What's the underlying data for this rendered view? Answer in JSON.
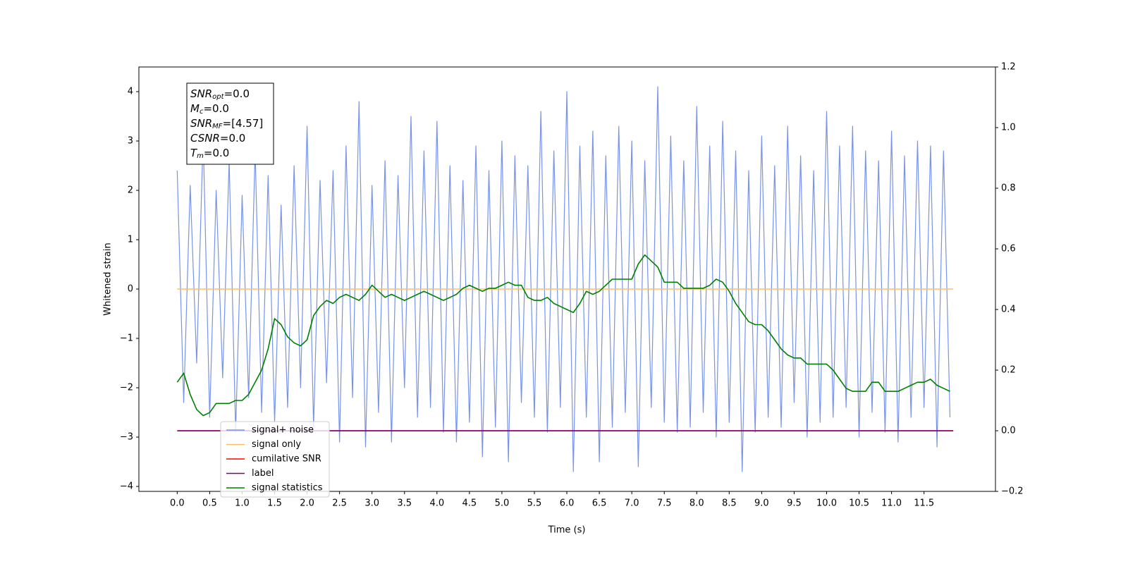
{
  "chart_data": {
    "type": "line",
    "xlabel": "Time (s)",
    "ylabel": "Whitened strain",
    "xlim": [
      -0.59,
      12.6
    ],
    "ylim": [
      -4.1,
      4.5
    ],
    "y2lim": [
      -0.2,
      1.2
    ],
    "xticks": [
      {
        "value": 0,
        "label": "0.0"
      },
      0.5,
      {
        "value": 1,
        "label": "1.0"
      },
      1.5,
      {
        "value": 2,
        "label": "2.0"
      },
      2.5,
      {
        "value": 3,
        "label": "3.0"
      },
      3.5,
      {
        "value": 4,
        "label": "4.0"
      },
      4.5,
      {
        "value": 5,
        "label": "5.0"
      },
      5.5,
      {
        "value": 6,
        "label": "6.0"
      },
      6.5,
      {
        "value": 7,
        "label": "7.0"
      },
      7.5,
      {
        "value": 8,
        "label": "8.0"
      },
      8.5,
      {
        "value": 9,
        "label": "9.0"
      },
      9.5,
      {
        "value": 10,
        "label": "10.0"
      },
      10.5,
      {
        "value": 11,
        "label": "11.0"
      },
      11.5
    ],
    "yticks": [
      {
        "value": -4,
        "label": "−4"
      },
      {
        "value": -3,
        "label": "−3"
      },
      {
        "value": -2,
        "label": "−2"
      },
      {
        "value": -1,
        "label": "−1"
      },
      0,
      1,
      2,
      3,
      4
    ],
    "y2ticks": [
      {
        "value": -0.2,
        "label": "−0.2"
      },
      {
        "value": 0,
        "label": "0.0"
      },
      0.2,
      0.4,
      0.6,
      0.8,
      {
        "value": 1,
        "label": "1.0"
      },
      1.2
    ],
    "grid": false,
    "legend_loc": "lower left",
    "annotation": [
      {
        "symbol": "SNR",
        "subscript": "opt",
        "text": "=0.0"
      },
      {
        "symbol": "M",
        "subscript": "c",
        "text": "=0.0"
      },
      {
        "symbol": "SNR",
        "subscript": "MF",
        "text": "=[4.57]"
      },
      {
        "symbol": "CSNR",
        "subscript": "",
        "text": "=0.0"
      },
      {
        "symbol": "T",
        "subscript": "m",
        "text": "=0.0"
      }
    ],
    "x": [
      0,
      0.1,
      0.2,
      0.3,
      0.4,
      0.5,
      0.6,
      0.7,
      0.8,
      0.9,
      1,
      1.1,
      1.2,
      1.3,
      1.4,
      1.5,
      1.6,
      1.7,
      1.8,
      1.9,
      2,
      2.1,
      2.2,
      2.3,
      2.4,
      2.5,
      2.6,
      2.7,
      2.8,
      2.9,
      3,
      3.1,
      3.2,
      3.3,
      3.4,
      3.5,
      3.6,
      3.7,
      3.8,
      3.9,
      4,
      4.1,
      4.2,
      4.3,
      4.4,
      4.5,
      4.6,
      4.7,
      4.8,
      4.9,
      5,
      5.1,
      5.2,
      5.3,
      5.4,
      5.5,
      5.6,
      5.7,
      5.8,
      5.9,
      6,
      6.1,
      6.2,
      6.3,
      6.4,
      6.5,
      6.6,
      6.7,
      6.8,
      6.9,
      7,
      7.1,
      7.2,
      7.3,
      7.4,
      7.5,
      7.6,
      7.7,
      7.8,
      7.9,
      8,
      8.1,
      8.2,
      8.3,
      8.4,
      8.5,
      8.6,
      8.7,
      8.8,
      8.9,
      9,
      9.1,
      9.2,
      9.3,
      9.4,
      9.5,
      9.6,
      9.7,
      9.8,
      9.9,
      10,
      10.1,
      10.2,
      10.3,
      10.4,
      10.5,
      10.6,
      10.7,
      10.8,
      10.9,
      11,
      11.1,
      11.2,
      11.3,
      11.4,
      11.5,
      11.6,
      11.7,
      11.8,
      11.9
    ],
    "series": [
      {
        "name": "signal+ noise",
        "color": "#7893e8",
        "axis": "y",
        "values": [
          2.4,
          -2.3,
          2.1,
          -1.5,
          3.1,
          -2.6,
          2.0,
          -1.8,
          2.6,
          -2.9,
          1.9,
          -2.2,
          2.8,
          -2.5,
          2.3,
          -2.7,
          1.7,
          -2.4,
          2.5,
          -2.0,
          3.3,
          -2.8,
          2.2,
          -1.9,
          2.4,
          -3.1,
          2.9,
          -2.2,
          3.8,
          -3.2,
          2.1,
          -2.5,
          2.6,
          -3.1,
          2.3,
          -2.0,
          3.5,
          -2.6,
          2.8,
          -2.4,
          3.4,
          -2.9,
          2.5,
          -3.1,
          2.2,
          -2.7,
          2.9,
          -3.4,
          2.4,
          -2.8,
          3.0,
          -3.5,
          2.7,
          -2.3,
          2.5,
          -2.6,
          3.6,
          -2.9,
          2.8,
          -2.4,
          4.0,
          -3.7,
          2.9,
          -2.6,
          3.2,
          -3.5,
          2.7,
          -2.8,
          3.3,
          -2.5,
          3.0,
          -3.6,
          2.6,
          -2.4,
          4.1,
          -2.7,
          3.1,
          -2.9,
          2.6,
          -2.8,
          3.7,
          -2.5,
          2.9,
          -3.0,
          3.4,
          -2.7,
          2.8,
          -3.7,
          2.4,
          -2.9,
          3.1,
          -2.6,
          2.5,
          -2.8,
          3.3,
          -2.3,
          2.7,
          -3.0,
          2.4,
          -2.7,
          3.6,
          -2.6,
          2.9,
          -2.4,
          3.3,
          -3.0,
          2.8,
          -2.5,
          2.6,
          -2.9,
          3.2,
          -3.1,
          2.7,
          -2.6,
          3.0,
          -2.4,
          2.9,
          -3.2,
          2.8,
          -2.6
        ]
      },
      {
        "name": "signal only",
        "color": "#ffbf66",
        "axis": "y",
        "x": [
          0,
          11.95
        ],
        "values": [
          0,
          0
        ]
      },
      {
        "name": "cumilative SNR",
        "color": "#ff0000",
        "axis": "y2",
        "x": [
          0,
          11.95
        ],
        "values": [
          0,
          0
        ]
      },
      {
        "name": "label",
        "color": "#800080",
        "axis": "y2",
        "x": [
          0,
          11.95
        ],
        "values": [
          0,
          0
        ]
      },
      {
        "name": "signal statistics",
        "color": "#008000",
        "axis": "y2",
        "values": [
          0.16,
          0.19,
          0.12,
          0.07,
          0.05,
          0.06,
          0.09,
          0.09,
          0.09,
          0.1,
          0.1,
          0.12,
          0.16,
          0.2,
          0.27,
          0.37,
          0.35,
          0.31,
          0.29,
          0.28,
          0.3,
          0.38,
          0.41,
          0.43,
          0.42,
          0.44,
          0.45,
          0.44,
          0.43,
          0.45,
          0.48,
          0.46,
          0.44,
          0.45,
          0.44,
          0.43,
          0.44,
          0.45,
          0.46,
          0.45,
          0.44,
          0.43,
          0.44,
          0.45,
          0.47,
          0.48,
          0.47,
          0.46,
          0.47,
          0.47,
          0.48,
          0.49,
          0.48,
          0.48,
          0.44,
          0.43,
          0.43,
          0.44,
          0.42,
          0.41,
          0.4,
          0.39,
          0.42,
          0.46,
          0.45,
          0.46,
          0.48,
          0.5,
          0.5,
          0.5,
          0.5,
          0.55,
          0.58,
          0.56,
          0.54,
          0.49,
          0.49,
          0.49,
          0.47,
          0.47,
          0.47,
          0.47,
          0.48,
          0.5,
          0.49,
          0.46,
          0.42,
          0.39,
          0.36,
          0.35,
          0.35,
          0.33,
          0.3,
          0.27,
          0.25,
          0.24,
          0.24,
          0.22,
          0.22,
          0.22,
          0.22,
          0.2,
          0.17,
          0.14,
          0.13,
          0.13,
          0.13,
          0.16,
          0.16,
          0.13,
          0.13,
          0.13,
          0.14,
          0.15,
          0.16,
          0.16,
          0.17,
          0.15,
          0.14,
          0.13
        ]
      }
    ]
  }
}
